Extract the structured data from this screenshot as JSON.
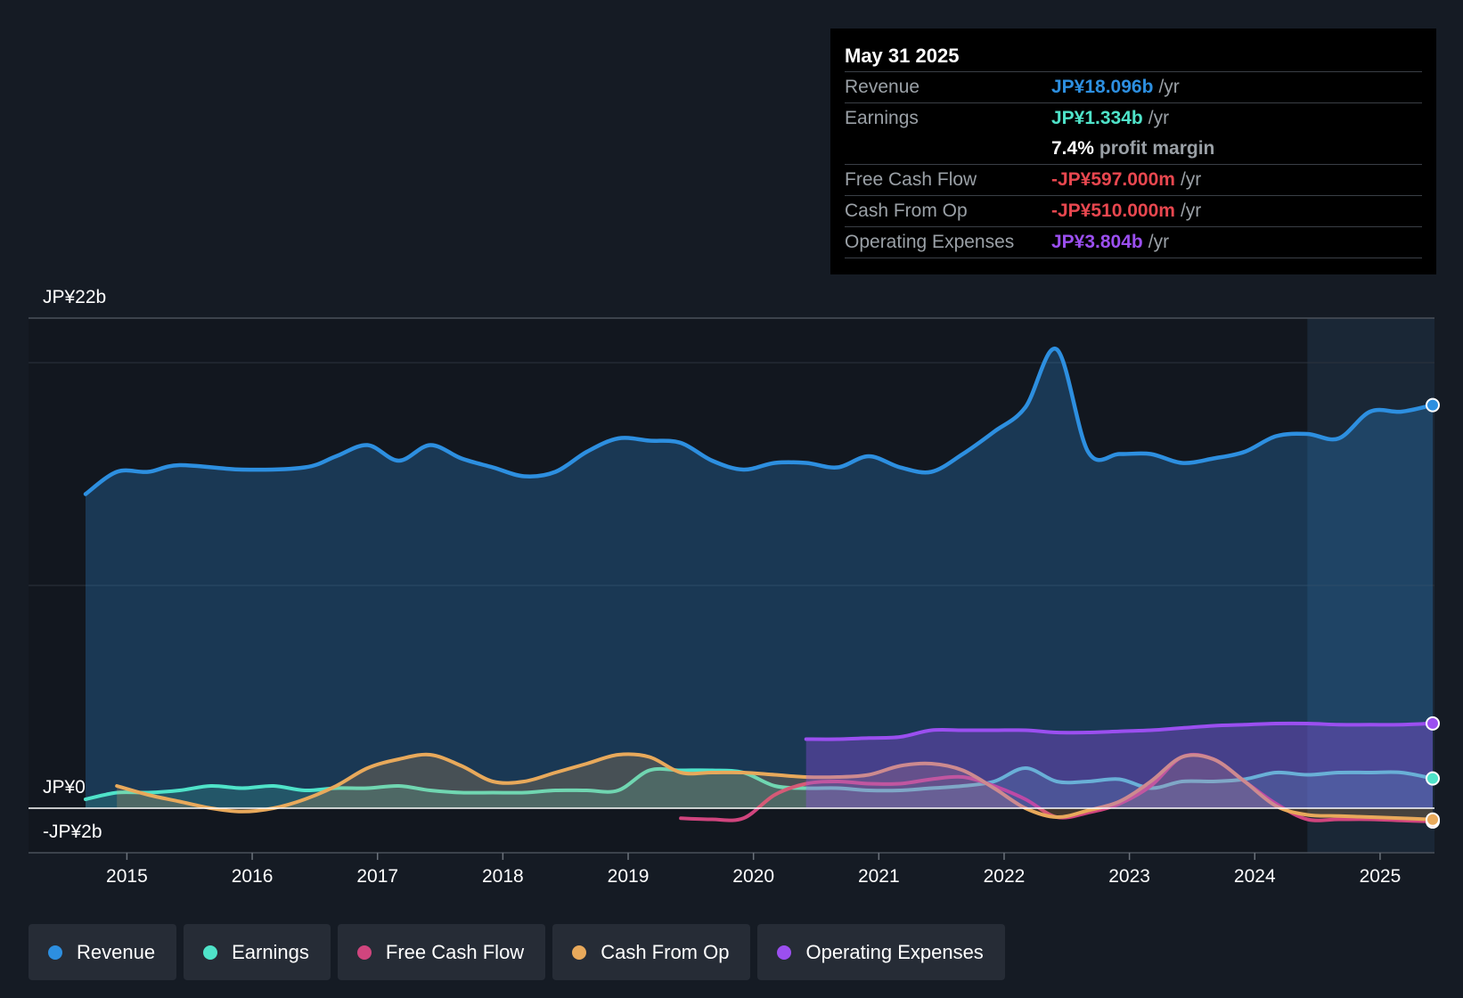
{
  "chart_data": {
    "type": "area",
    "currency": "JP¥",
    "y_axis": {
      "top_label": "JP¥22b",
      "zero_label": "JP¥0",
      "bottom_label": "-JP¥2b",
      "ylim": [
        -2,
        22
      ]
    },
    "x_axis": {
      "ticks": [
        "2015",
        "2016",
        "2017",
        "2018",
        "2019",
        "2020",
        "2021",
        "2022",
        "2023",
        "2024",
        "2025"
      ],
      "range": [
        2014.67,
        2025.42
      ]
    },
    "forecast_shade_start": 2024.42,
    "series": [
      {
        "name": "Revenue",
        "color": "#2d8fe0",
        "fill": true,
        "points": [
          [
            2014.67,
            14.1
          ],
          [
            2014.92,
            15.1
          ],
          [
            2015.17,
            15.1
          ],
          [
            2015.42,
            15.4
          ],
          [
            2015.92,
            15.2
          ],
          [
            2016.42,
            15.3
          ],
          [
            2016.67,
            15.8
          ],
          [
            2016.92,
            16.3
          ],
          [
            2017.17,
            15.6
          ],
          [
            2017.42,
            16.3
          ],
          [
            2017.67,
            15.7
          ],
          [
            2017.92,
            15.3
          ],
          [
            2018.17,
            14.9
          ],
          [
            2018.42,
            15.1
          ],
          [
            2018.67,
            16.0
          ],
          [
            2018.92,
            16.6
          ],
          [
            2019.17,
            16.5
          ],
          [
            2019.42,
            16.4
          ],
          [
            2019.67,
            15.6
          ],
          [
            2019.92,
            15.2
          ],
          [
            2020.17,
            15.5
          ],
          [
            2020.42,
            15.5
          ],
          [
            2020.67,
            15.3
          ],
          [
            2020.92,
            15.8
          ],
          [
            2021.17,
            15.3
          ],
          [
            2021.42,
            15.1
          ],
          [
            2021.67,
            15.9
          ],
          [
            2021.92,
            16.9
          ],
          [
            2022.17,
            18.0
          ],
          [
            2022.42,
            20.6
          ],
          [
            2022.67,
            16.0
          ],
          [
            2022.92,
            15.9
          ],
          [
            2023.17,
            15.9
          ],
          [
            2023.42,
            15.5
          ],
          [
            2023.67,
            15.7
          ],
          [
            2023.92,
            16.0
          ],
          [
            2024.17,
            16.7
          ],
          [
            2024.42,
            16.8
          ],
          [
            2024.67,
            16.6
          ],
          [
            2024.92,
            17.8
          ],
          [
            2025.17,
            17.8
          ],
          [
            2025.42,
            18.096
          ]
        ]
      },
      {
        "name": "Earnings",
        "color": "#4fe3c9",
        "fill": true,
        "points": [
          [
            2014.67,
            0.4
          ],
          [
            2014.92,
            0.7
          ],
          [
            2015.17,
            0.7
          ],
          [
            2015.42,
            0.8
          ],
          [
            2015.67,
            1.0
          ],
          [
            2015.92,
            0.9
          ],
          [
            2016.17,
            1.0
          ],
          [
            2016.42,
            0.8
          ],
          [
            2016.67,
            0.9
          ],
          [
            2016.92,
            0.9
          ],
          [
            2017.17,
            1.0
          ],
          [
            2017.42,
            0.8
          ],
          [
            2017.67,
            0.7
          ],
          [
            2017.92,
            0.7
          ],
          [
            2018.17,
            0.7
          ],
          [
            2018.42,
            0.8
          ],
          [
            2018.67,
            0.8
          ],
          [
            2018.92,
            0.8
          ],
          [
            2019.17,
            1.7
          ],
          [
            2019.42,
            1.7
          ],
          [
            2019.67,
            1.7
          ],
          [
            2019.92,
            1.6
          ],
          [
            2020.17,
            1.0
          ],
          [
            2020.42,
            0.9
          ],
          [
            2020.67,
            0.9
          ],
          [
            2020.92,
            0.8
          ],
          [
            2021.17,
            0.8
          ],
          [
            2021.42,
            0.9
          ],
          [
            2021.67,
            1.0
          ],
          [
            2021.92,
            1.2
          ],
          [
            2022.17,
            1.8
          ],
          [
            2022.42,
            1.2
          ],
          [
            2022.67,
            1.2
          ],
          [
            2022.92,
            1.3
          ],
          [
            2023.17,
            0.9
          ],
          [
            2023.42,
            1.2
          ],
          [
            2023.67,
            1.2
          ],
          [
            2023.92,
            1.3
          ],
          [
            2024.17,
            1.6
          ],
          [
            2024.42,
            1.5
          ],
          [
            2024.67,
            1.6
          ],
          [
            2024.92,
            1.6
          ],
          [
            2025.17,
            1.6
          ],
          [
            2025.42,
            1.334
          ]
        ]
      },
      {
        "name": "Free Cash Flow",
        "color": "#d0457e",
        "fill": false,
        "points": [
          [
            2019.42,
            -0.45
          ],
          [
            2019.67,
            -0.5
          ],
          [
            2019.92,
            -0.45
          ],
          [
            2020.17,
            0.6
          ],
          [
            2020.42,
            1.1
          ],
          [
            2020.67,
            1.2
          ],
          [
            2020.92,
            1.1
          ],
          [
            2021.17,
            1.1
          ],
          [
            2021.42,
            1.3
          ],
          [
            2021.67,
            1.4
          ],
          [
            2021.92,
            1.0
          ],
          [
            2022.17,
            0.4
          ],
          [
            2022.42,
            -0.4
          ],
          [
            2022.67,
            -0.2
          ],
          [
            2022.92,
            0.2
          ],
          [
            2023.17,
            1.0
          ],
          [
            2023.42,
            2.3
          ],
          [
            2023.67,
            2.2
          ],
          [
            2023.92,
            1.2
          ],
          [
            2024.17,
            0.2
          ],
          [
            2024.42,
            -0.5
          ],
          [
            2024.67,
            -0.5
          ],
          [
            2024.92,
            -0.5
          ],
          [
            2025.17,
            -0.55
          ],
          [
            2025.42,
            -0.597
          ]
        ]
      },
      {
        "name": "Cash From Op",
        "color": "#e8a95b",
        "fill": true,
        "points": [
          [
            2014.92,
            1.0
          ],
          [
            2015.17,
            0.6
          ],
          [
            2015.42,
            0.3
          ],
          [
            2015.67,
            0.0
          ],
          [
            2015.92,
            -0.15
          ],
          [
            2016.17,
            0.0
          ],
          [
            2016.42,
            0.4
          ],
          [
            2016.67,
            1.0
          ],
          [
            2016.92,
            1.8
          ],
          [
            2017.17,
            2.2
          ],
          [
            2017.42,
            2.4
          ],
          [
            2017.67,
            1.9
          ],
          [
            2017.92,
            1.2
          ],
          [
            2018.17,
            1.2
          ],
          [
            2018.42,
            1.6
          ],
          [
            2018.67,
            2.0
          ],
          [
            2018.92,
            2.4
          ],
          [
            2019.17,
            2.3
          ],
          [
            2019.42,
            1.6
          ],
          [
            2019.67,
            1.6
          ],
          [
            2019.92,
            1.6
          ],
          [
            2020.17,
            1.5
          ],
          [
            2020.42,
            1.4
          ],
          [
            2020.67,
            1.4
          ],
          [
            2020.92,
            1.5
          ],
          [
            2021.17,
            1.9
          ],
          [
            2021.42,
            2.0
          ],
          [
            2021.67,
            1.7
          ],
          [
            2021.92,
            0.9
          ],
          [
            2022.17,
            0.0
          ],
          [
            2022.42,
            -0.4
          ],
          [
            2022.67,
            -0.1
          ],
          [
            2022.92,
            0.3
          ],
          [
            2023.17,
            1.2
          ],
          [
            2023.42,
            2.3
          ],
          [
            2023.67,
            2.2
          ],
          [
            2023.92,
            1.2
          ],
          [
            2024.17,
            0.1
          ],
          [
            2024.42,
            -0.3
          ],
          [
            2024.67,
            -0.35
          ],
          [
            2024.92,
            -0.4
          ],
          [
            2025.17,
            -0.45
          ],
          [
            2025.42,
            -0.51
          ]
        ]
      },
      {
        "name": "Operating Expenses",
        "color": "#9b4ff0",
        "fill": true,
        "points": [
          [
            2020.42,
            3.1
          ],
          [
            2020.67,
            3.1
          ],
          [
            2020.92,
            3.15
          ],
          [
            2021.17,
            3.2
          ],
          [
            2021.42,
            3.5
          ],
          [
            2021.67,
            3.5
          ],
          [
            2021.92,
            3.5
          ],
          [
            2022.17,
            3.5
          ],
          [
            2022.42,
            3.4
          ],
          [
            2022.67,
            3.4
          ],
          [
            2022.92,
            3.45
          ],
          [
            2023.17,
            3.5
          ],
          [
            2023.42,
            3.6
          ],
          [
            2023.67,
            3.7
          ],
          [
            2023.92,
            3.75
          ],
          [
            2024.17,
            3.8
          ],
          [
            2024.42,
            3.8
          ],
          [
            2024.67,
            3.75
          ],
          [
            2024.92,
            3.75
          ],
          [
            2025.17,
            3.75
          ],
          [
            2025.42,
            3.804
          ]
        ]
      }
    ]
  },
  "tooltip": {
    "date": "May 31 2025",
    "rows": [
      {
        "label": "Revenue",
        "value": "JP¥18.096b",
        "unit": "/yr",
        "color": "#2d8fe0"
      },
      {
        "label": "Earnings",
        "value": "JP¥1.334b",
        "unit": "/yr",
        "color": "#4fe3c9"
      },
      {
        "label": "",
        "value": "7.4%",
        "unit": "profit margin",
        "color": "#ffffff"
      },
      {
        "label": "Free Cash Flow",
        "value": "-JP¥597.000m",
        "unit": "/yr",
        "color": "#e8474f"
      },
      {
        "label": "Cash From Op",
        "value": "-JP¥510.000m",
        "unit": "/yr",
        "color": "#e8474f"
      },
      {
        "label": "Operating Expenses",
        "value": "JP¥3.804b",
        "unit": "/yr",
        "color": "#9b4ff0"
      }
    ]
  },
  "legend": [
    {
      "label": "Revenue",
      "color": "#2d8fe0"
    },
    {
      "label": "Earnings",
      "color": "#4fe3c9"
    },
    {
      "label": "Free Cash Flow",
      "color": "#d0457e"
    },
    {
      "label": "Cash From Op",
      "color": "#e8a95b"
    },
    {
      "label": "Operating Expenses",
      "color": "#9b4ff0"
    }
  ]
}
